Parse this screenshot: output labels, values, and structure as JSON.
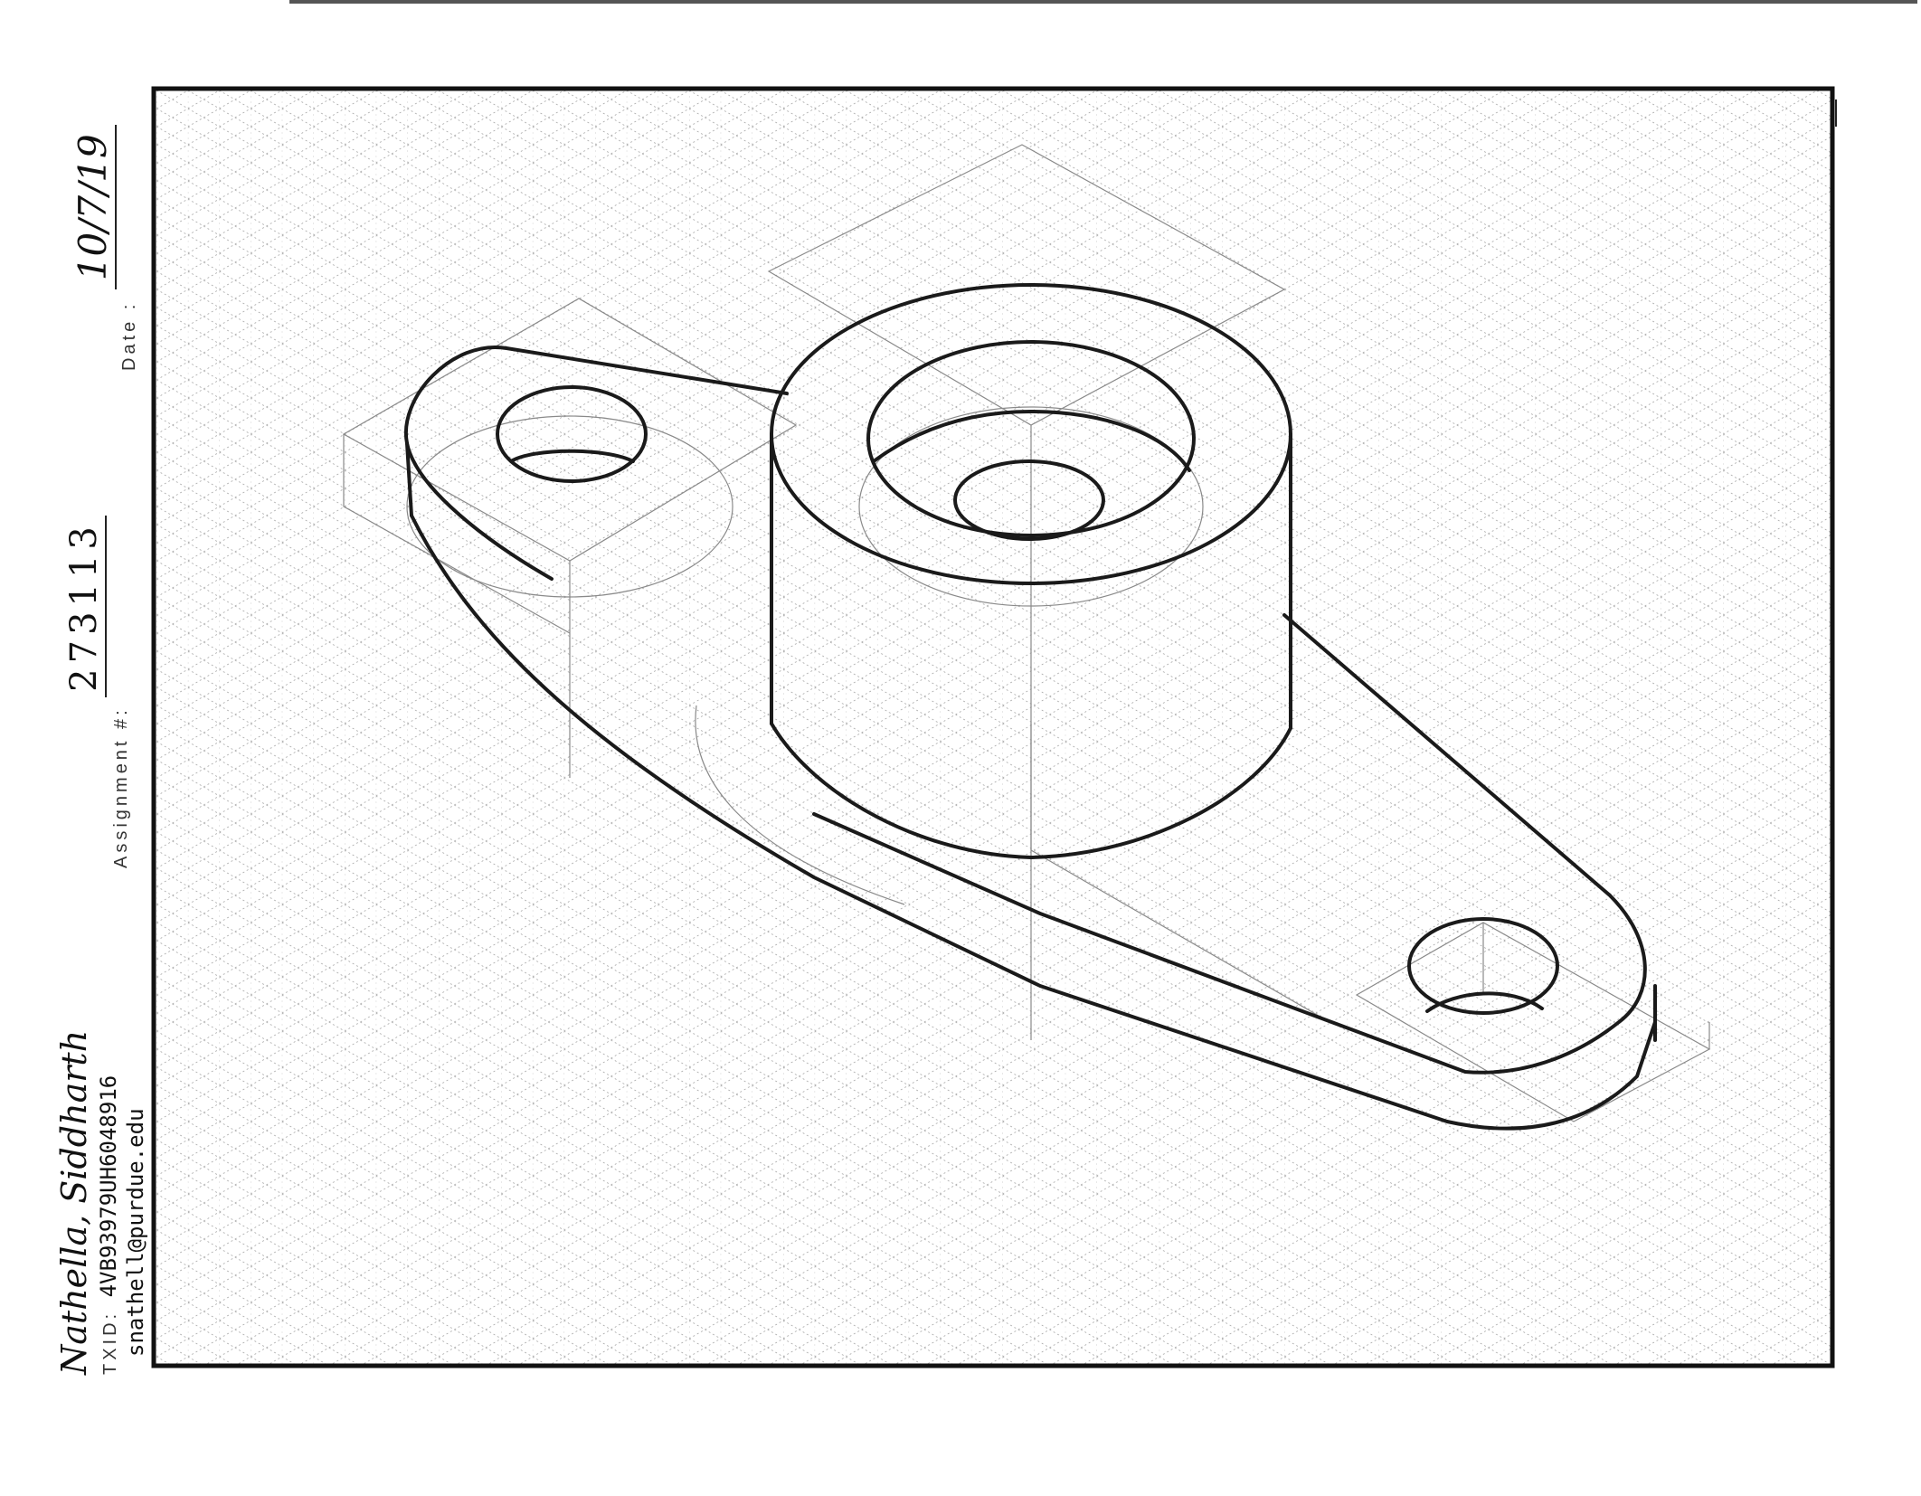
{
  "sheet": {
    "student_name": "Nathella, Siddharth",
    "txid_label": "TXID:",
    "txid_value": "4VB93979UH6048916",
    "email": "snathell@purdue.edu",
    "assignment_label": "Assignment #:",
    "assignment_value": "273113",
    "date_label": "Date :",
    "date_value": "10/7/19"
  },
  "drawing": {
    "subject": "isometric sketch of base plate with two mounting holes and central cylindrical boss",
    "grid": "isometric",
    "line_color": "#1a1a1a",
    "grid_color": "#9a9a9a"
  }
}
